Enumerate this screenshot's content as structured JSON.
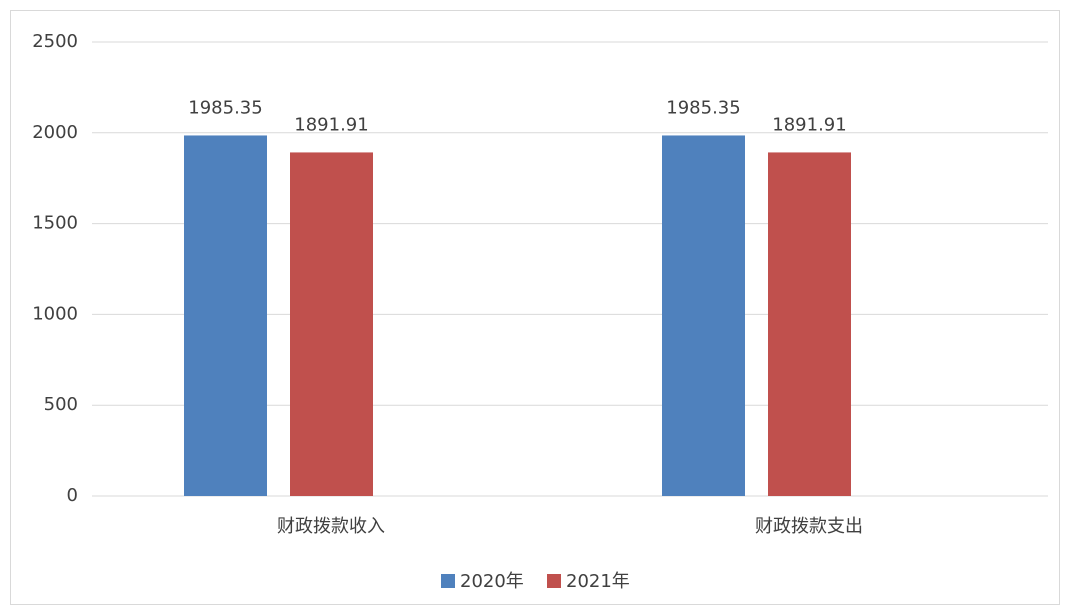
{
  "chart_data": {
    "type": "bar",
    "categories": [
      "财政拨款收入",
      "财政拨款支出"
    ],
    "series": [
      {
        "name": "2020年",
        "color": "#4f81bd",
        "values": [
          1985.35,
          1985.35
        ]
      },
      {
        "name": "2021年",
        "color": "#c0504d",
        "values": [
          1891.91,
          1891.91
        ]
      }
    ],
    "ylim": [
      0,
      2500
    ],
    "yticks": [
      0,
      500,
      1000,
      1500,
      2000,
      2500
    ],
    "grid": true,
    "legend": "bottom"
  }
}
